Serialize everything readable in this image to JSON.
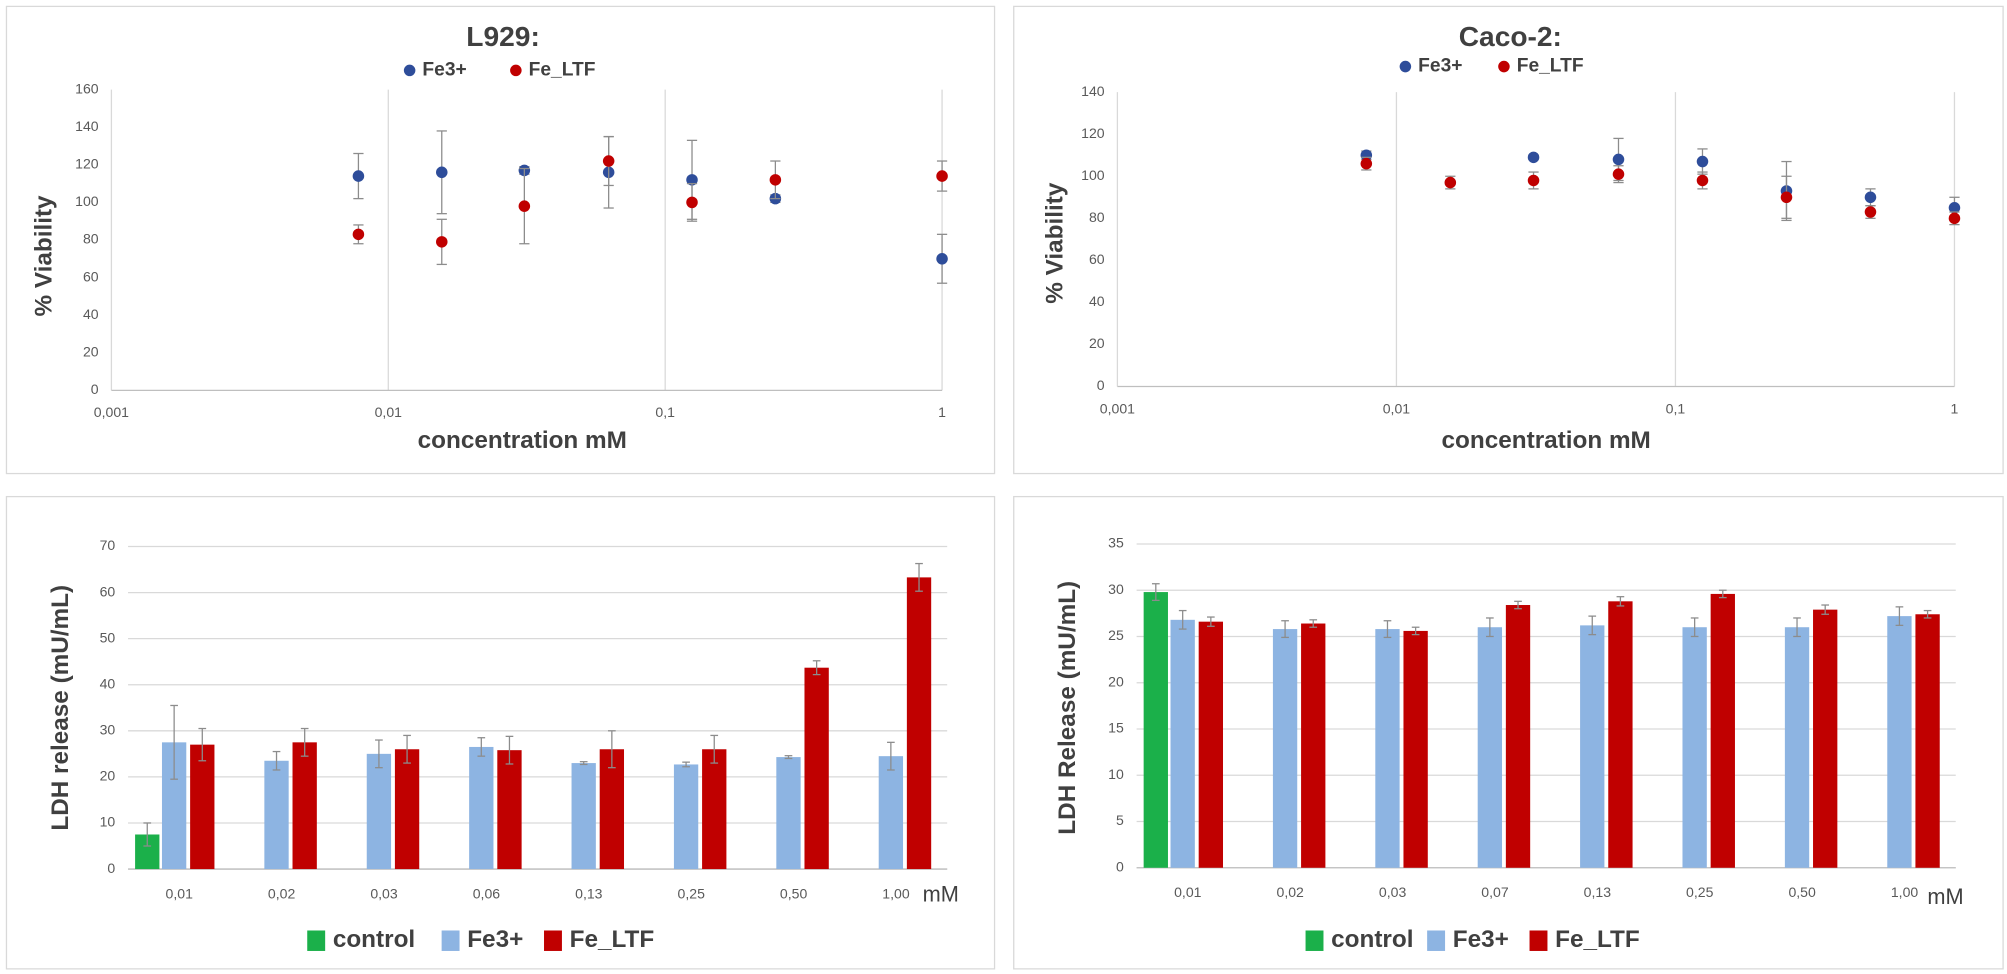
{
  "chart_data": [
    {
      "type": "scatter",
      "title": "L929:",
      "x_label": "concentration mM",
      "y_label": "% Viability",
      "xscale": "log",
      "xlim": [
        0.001,
        1
      ],
      "xticks": [
        {
          "value": 0.001,
          "label": "0,001"
        },
        {
          "value": 0.01,
          "label": "0,01"
        },
        {
          "value": 0.1,
          "label": "0,1"
        },
        1
      ],
      "ylim": [
        0,
        160
      ],
      "yticks": [
        0,
        20,
        40,
        60,
        80,
        100,
        120,
        140,
        160
      ],
      "grid": "x",
      "x": [
        0.0078,
        0.0156,
        0.031,
        0.0625,
        0.125,
        0.25,
        1
      ],
      "series": [
        {
          "name": "Fe3+",
          "color": "#2e4d9a",
          "values": [
            114,
            116,
            117,
            116,
            112,
            102,
            70
          ],
          "errors": [
            12,
            22,
            2,
            19,
            21,
            2,
            13
          ]
        },
        {
          "name": "Fe_LTF",
          "color": "#c00000",
          "values": [
            83,
            79,
            98,
            122,
            100,
            112,
            114
          ],
          "errors": [
            5,
            12,
            20,
            13,
            10,
            10,
            8
          ]
        }
      ]
    },
    {
      "type": "scatter",
      "title": "Caco-2:",
      "x_label": "concentration mM",
      "y_label": "% Viability",
      "xscale": "log",
      "xlim": [
        0.001,
        1
      ],
      "xticks": [
        {
          "value": 0.001,
          "label": "0,001"
        },
        {
          "value": 0.01,
          "label": "0,01"
        },
        {
          "value": 0.1,
          "label": "0,1"
        },
        1
      ],
      "ylim": [
        0,
        140
      ],
      "yticks": [
        0,
        20,
        40,
        60,
        80,
        100,
        120,
        140
      ],
      "grid": "x",
      "x": [
        0.0078,
        0.0156,
        0.031,
        0.0625,
        0.125,
        0.25,
        0.5,
        1
      ],
      "series": [
        {
          "name": "Fe3+",
          "color": "#2e4d9a",
          "values": [
            110,
            null,
            109,
            108,
            107,
            93,
            90,
            85
          ],
          "errors": [
            2,
            null,
            1,
            10,
            6,
            14,
            4,
            5
          ]
        },
        {
          "name": "Fe_LTF",
          "color": "#c00000",
          "values": [
            106,
            97,
            98,
            101,
            98,
            90,
            83,
            80
          ],
          "errors": [
            3,
            3,
            4,
            4,
            4,
            10,
            3,
            3
          ]
        }
      ]
    },
    {
      "type": "bar",
      "y_label": "LDH release (mU/mL)",
      "x_label": "mM",
      "categories": [
        "0,01",
        "0,02",
        "0,03",
        "0,06",
        "0,13",
        "0,25",
        "0,50",
        "1,00"
      ],
      "ylim": [
        0,
        70
      ],
      "yticks": [
        0,
        10,
        20,
        30,
        40,
        50,
        60,
        70
      ],
      "grid": "y",
      "series": [
        {
          "name": "control",
          "color": "#1bb04a",
          "values": [
            7.5,
            null,
            null,
            null,
            null,
            null,
            null,
            null
          ],
          "errors": [
            2.5,
            null,
            null,
            null,
            null,
            null,
            null,
            null
          ]
        },
        {
          "name": "Fe3+",
          "color": "#8db4e2",
          "values": [
            27.5,
            23.5,
            25,
            26.5,
            23,
            22.7,
            24.3,
            24.5
          ],
          "errors": [
            8,
            2,
            3,
            2,
            0.3,
            0.5,
            0.3,
            3
          ]
        },
        {
          "name": "Fe_LTF",
          "color": "#c00000",
          "values": [
            27,
            27.5,
            26,
            25.8,
            26,
            26,
            43.7,
            63.3
          ],
          "errors": [
            3.5,
            3,
            3,
            3,
            4,
            3,
            1.5,
            3
          ]
        }
      ]
    },
    {
      "type": "bar",
      "y_label": "LDH Release (mU/mL)",
      "x_label": "mM",
      "categories": [
        "0,01",
        "0,02",
        "0,03",
        "0,07",
        "0,13",
        "0,25",
        "0,50",
        "1,00"
      ],
      "ylim": [
        0,
        35
      ],
      "yticks": [
        0,
        5,
        10,
        15,
        20,
        25,
        30,
        35
      ],
      "grid": "y",
      "series": [
        {
          "name": "control",
          "color": "#1bb04a",
          "values": [
            29.8,
            null,
            null,
            null,
            null,
            null,
            null,
            null
          ],
          "errors": [
            0.9,
            null,
            null,
            null,
            null,
            null,
            null,
            null
          ]
        },
        {
          "name": "Fe3+",
          "color": "#8db4e2",
          "values": [
            26.8,
            25.8,
            25.8,
            26,
            26.2,
            26,
            26,
            27.2
          ],
          "errors": [
            1,
            0.9,
            0.9,
            1,
            1,
            1,
            1,
            1
          ]
        },
        {
          "name": "Fe_LTF",
          "color": "#c00000",
          "values": [
            26.6,
            26.4,
            25.6,
            28.4,
            28.8,
            29.6,
            27.9,
            27.4
          ],
          "errors": [
            0.5,
            0.4,
            0.4,
            0.4,
            0.5,
            0.4,
            0.5,
            0.4
          ]
        }
      ]
    }
  ]
}
